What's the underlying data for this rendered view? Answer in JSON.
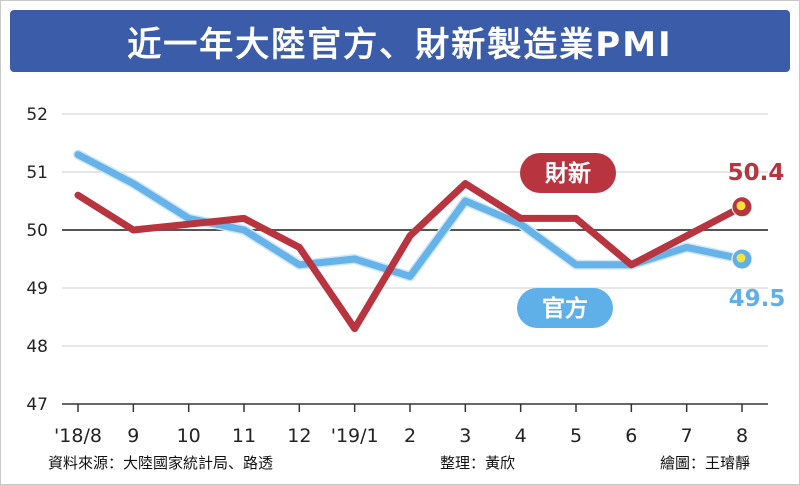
{
  "title": "近一年大陸官方、財新製造業PMI",
  "footer": {
    "source": "資料來源：大陸國家統計局、路透",
    "editor": "整理：黃欣",
    "artist": "繪圖：王璿靜"
  },
  "chart_data": {
    "type": "line",
    "title": "近一年大陸官方、財新製造業PMI",
    "categories": [
      "'18/8",
      "9",
      "10",
      "11",
      "12",
      "'19/1",
      "2",
      "3",
      "4",
      "5",
      "6",
      "7",
      "8"
    ],
    "ylim": [
      47,
      52
    ],
    "yticks": [
      47,
      48,
      49,
      50,
      51,
      52
    ],
    "reference_line": 50,
    "grid": true,
    "series": [
      {
        "name": "財新",
        "color": "#b8343f",
        "values": [
          50.6,
          50.0,
          50.1,
          50.2,
          49.7,
          48.3,
          49.9,
          50.8,
          50.2,
          50.2,
          49.4,
          49.9,
          50.4
        ],
        "end_label": "50.4"
      },
      {
        "name": "官方",
        "color": "#5fb0e8",
        "values": [
          51.3,
          50.8,
          50.2,
          50.0,
          49.4,
          49.5,
          49.2,
          50.5,
          50.1,
          49.4,
          49.4,
          49.7,
          49.5
        ],
        "end_label": "49.5"
      }
    ]
  }
}
